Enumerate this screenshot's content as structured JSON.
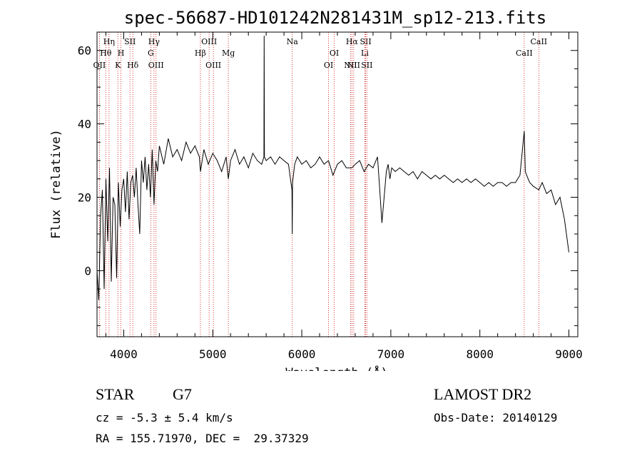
{
  "chart_data": {
    "type": "line",
    "title": "spec-56687-HD101242N281431M_sp12-213.fits",
    "xlabel": "Wavelength (Å)",
    "ylabel": "Flux (relative)",
    "xlim": [
      3700,
      9100
    ],
    "ylim": [
      -18,
      65
    ],
    "xticks": [
      4000,
      5000,
      6000,
      7000,
      8000,
      9000
    ],
    "yticks": [
      0,
      20,
      40,
      60
    ],
    "grid": false,
    "series": [
      {
        "x": [
          3700,
          3720,
          3740,
          3760,
          3780,
          3800,
          3820,
          3840,
          3860,
          3880,
          3900,
          3920,
          3940,
          3960,
          3980,
          4000,
          4020,
          4040,
          4060,
          4080,
          4100,
          4120,
          4140,
          4160,
          4180,
          4200,
          4220,
          4240,
          4260,
          4280,
          4300,
          4320,
          4340,
          4360,
          4380,
          4400,
          4450,
          4500,
          4550,
          4600,
          4650,
          4700,
          4750,
          4800,
          4850,
          4862,
          4900,
          4950,
          5000,
          5050,
          5100,
          5150,
          5175,
          5200,
          5250,
          5300,
          5350,
          5400,
          5450,
          5500,
          5550,
          5575,
          5577,
          5580,
          5600,
          5650,
          5700,
          5750,
          5800,
          5850,
          5890,
          5893,
          5896,
          5920,
          5950,
          6000,
          6050,
          6100,
          6150,
          6200,
          6250,
          6300,
          6350,
          6400,
          6450,
          6500,
          6563,
          6600,
          6650,
          6700,
          6750,
          6800,
          6850,
          6870,
          6900,
          6950,
          6970,
          6990,
          7010,
          7050,
          7100,
          7150,
          7200,
          7250,
          7300,
          7350,
          7400,
          7450,
          7500,
          7550,
          7600,
          7650,
          7700,
          7750,
          7800,
          7850,
          7900,
          7950,
          8000,
          8050,
          8100,
          8150,
          8200,
          8250,
          8300,
          8350,
          8400,
          8450,
          8498,
          8510,
          8542,
          8560,
          8600,
          8662,
          8700,
          8750,
          8800,
          8850,
          8900,
          8950,
          9000
        ],
        "y": [
          0,
          -8,
          15,
          22,
          -5,
          25,
          8,
          28,
          -3,
          20,
          18,
          -2,
          24,
          12,
          22,
          25,
          16,
          27,
          14,
          24,
          26,
          20,
          28,
          18,
          10,
          30,
          24,
          31,
          22,
          29,
          20,
          33,
          18,
          30,
          27,
          34,
          29,
          36,
          31,
          33,
          30,
          35,
          32,
          34,
          31,
          27,
          33,
          29,
          32,
          30,
          27,
          31,
          25,
          30,
          33,
          29,
          31,
          28,
          32,
          30,
          29,
          31,
          64,
          31,
          30,
          31,
          29,
          31,
          30,
          29,
          22,
          10,
          24,
          29,
          31,
          29,
          30,
          28,
          29,
          31,
          29,
          30,
          26,
          29,
          30,
          28,
          28,
          29,
          30,
          27,
          29,
          28,
          31,
          24,
          13,
          27,
          29,
          25,
          28,
          27,
          28,
          27,
          26,
          27,
          25,
          27,
          26,
          25,
          26,
          25,
          26,
          25,
          24,
          25,
          24,
          25,
          24,
          25,
          24,
          23,
          24,
          23,
          24,
          24,
          23,
          24,
          24,
          26,
          38,
          27,
          25,
          24,
          23,
          22,
          24,
          21,
          22,
          18,
          20,
          14,
          5
        ]
      }
    ],
    "line_markers": [
      {
        "wave": 3727,
        "label": "OII",
        "row": 3
      },
      {
        "wave": 3798,
        "label": "Hθ",
        "row": 2
      },
      {
        "wave": 3835,
        "label": "Hη",
        "row": 1
      },
      {
        "wave": 3934,
        "label": "K",
        "row": 3
      },
      {
        "wave": 3969,
        "label": "H",
        "row": 2
      },
      {
        "wave": 4070,
        "label": "SII",
        "row": 1
      },
      {
        "wave": 4102,
        "label": "Hδ",
        "row": 3
      },
      {
        "wave": 4304,
        "label": "G",
        "row": 2
      },
      {
        "wave": 4340,
        "label": "Hγ",
        "row": 1
      },
      {
        "wave": 4363,
        "label": "OIII",
        "row": 3
      },
      {
        "wave": 4861,
        "label": "Hβ",
        "row": 2
      },
      {
        "wave": 4959,
        "label": "OIII",
        "row": 1
      },
      {
        "wave": 5007,
        "label": "OIII",
        "row": 3
      },
      {
        "wave": 5175,
        "label": "Mg",
        "row": 2
      },
      {
        "wave": 5893,
        "label": "Na",
        "row": 1
      },
      {
        "wave": 6300,
        "label": "OI",
        "row": 3
      },
      {
        "wave": 6364,
        "label": "OI",
        "row": 2
      },
      {
        "wave": 6548,
        "label": "NII",
        "row": 3
      },
      {
        "wave": 6563,
        "label": "Hα",
        "row": 1
      },
      {
        "wave": 6583,
        "label": "NII",
        "row": 3
      },
      {
        "wave": 6708,
        "label": "Li",
        "row": 2
      },
      {
        "wave": 6717,
        "label": "SII",
        "row": 1
      },
      {
        "wave": 6731,
        "label": "SII",
        "row": 3
      },
      {
        "wave": 8498,
        "label": "CaII",
        "row": 2
      },
      {
        "wave": 8662,
        "label": "CaII",
        "row": 1
      }
    ]
  },
  "info": {
    "class": "STAR",
    "subclass": "G7",
    "survey": "LAMOST DR2",
    "cz": "cz = -5.3 ± 5.4 km/s",
    "obs_date": "Obs-Date: 20140129",
    "radec": "RA = 155.71970, DEC =  29.37329"
  },
  "colors": {
    "spectrum": "#000000",
    "marker_line": "#cc0000",
    "axes": "#000000"
  }
}
